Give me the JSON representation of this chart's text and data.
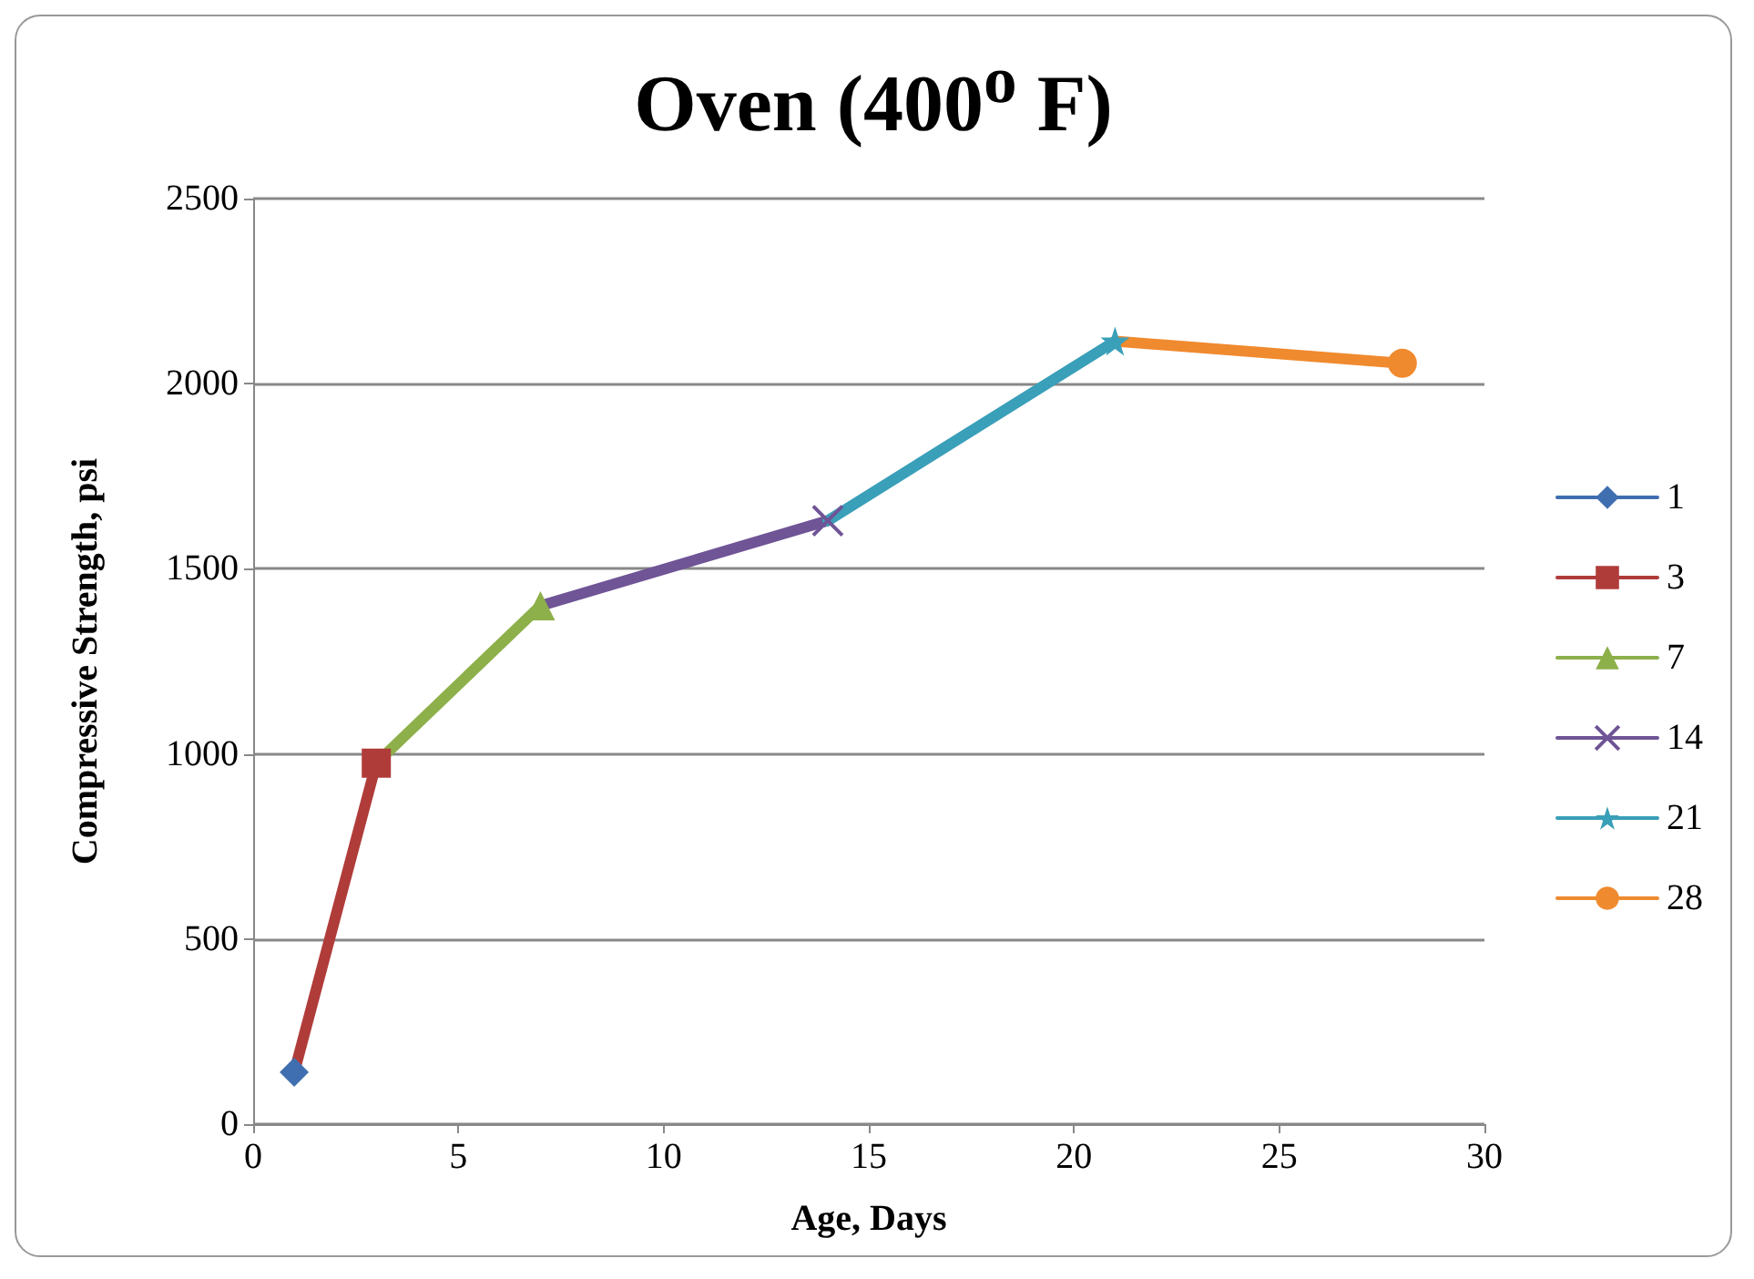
{
  "chart_data": {
    "type": "line",
    "title": "Oven (400$^{o}$ F)",
    "xlabel": "Age, Days",
    "ylabel": "Compressive Strength, psi",
    "xlim": [
      0,
      30
    ],
    "xticks": [
      0,
      5,
      10,
      15,
      20,
      25,
      30
    ],
    "ylim": [
      0,
      2500
    ],
    "yticks": [
      0,
      500,
      1000,
      1500,
      2000,
      2500
    ],
    "grid": "y",
    "legend": "right",
    "line_style": "solid",
    "series": [
      {
        "name": "1",
        "color": "#3f6fb0",
        "marker": "diamond",
        "x": [
          1
        ],
        "values": [
          140
        ]
      },
      {
        "name": "3",
        "color": "#b03c3a",
        "marker": "square",
        "x": [
          1,
          3
        ],
        "values": [
          140,
          975
        ]
      },
      {
        "name": "7",
        "color": "#8db04a",
        "marker": "triangle",
        "x": [
          3,
          7
        ],
        "values": [
          975,
          1400
        ]
      },
      {
        "name": "14",
        "color": "#6f5496",
        "marker": "cross",
        "x": [
          7,
          14
        ],
        "values": [
          1400,
          1630
        ]
      },
      {
        "name": "21",
        "color": "#3a9fb8",
        "marker": "star",
        "x": [
          14,
          21
        ],
        "values": [
          1630,
          2115
        ]
      },
      {
        "name": "28",
        "color": "#f08a2e",
        "marker": "circle",
        "x": [
          21,
          28
        ],
        "values": [
          2115,
          2055
        ]
      }
    ]
  }
}
